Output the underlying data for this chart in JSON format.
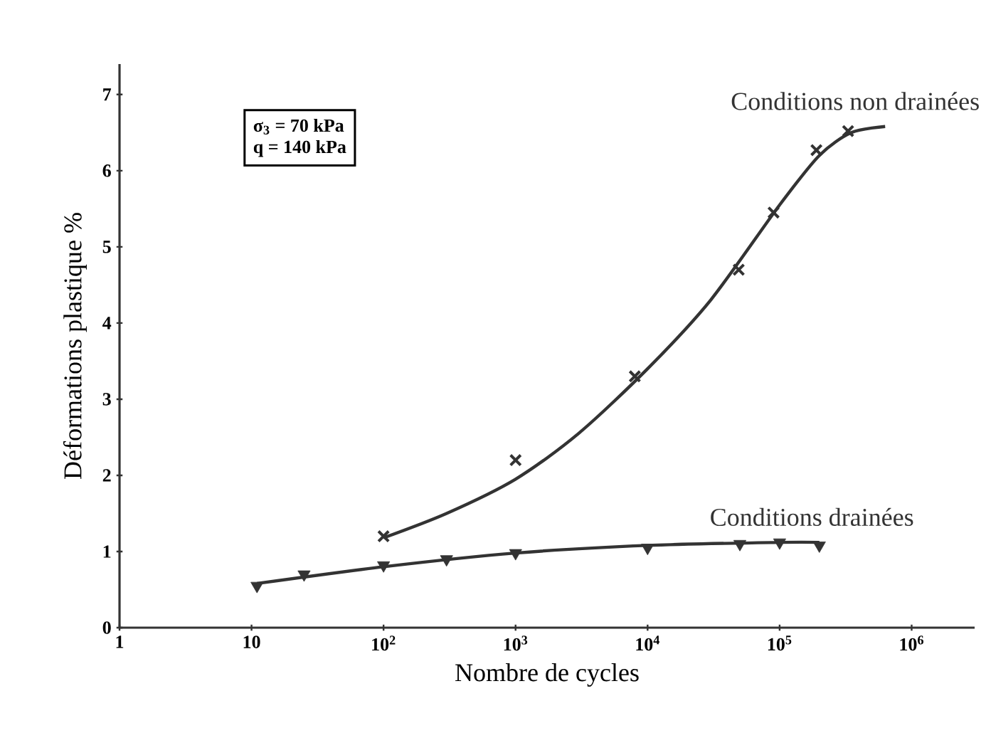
{
  "chart_data": {
    "type": "line",
    "xlabel": "Nombre de cycles",
    "ylabel": "Déformations plastique %",
    "log": "x",
    "xlim": [
      1,
      3000000
    ],
    "ylim": [
      0,
      7.4
    ],
    "xticks": [
      1,
      10,
      {
        "value": 100,
        "label": "10$^{2}$"
      },
      {
        "value": 1000,
        "label": "10$^{3}$"
      },
      {
        "value": 10000,
        "label": "10$^{4}$"
      },
      {
        "value": 100000,
        "label": "10$^{5}$"
      },
      {
        "value": 1000000,
        "label": "10$^{6}$"
      }
    ],
    "yticks": [
      0,
      1,
      2,
      3,
      4,
      5,
      6,
      7
    ],
    "annotations": [
      "σ$_{3}$ =  70 kPa",
      "q  = 140 kPa"
    ],
    "series": [
      {
        "type": "scatter",
        "marker": "cross",
        "color": "#333333",
        "x": [
          100,
          1000,
          8000,
          49000,
          90000,
          190000,
          330000
        ],
        "values": [
          1.2,
          2.2,
          3.3,
          4.7,
          5.45,
          6.27,
          6.52
        ]
      },
      {
        "name": "Conditions non drainées",
        "marker": "none",
        "line_style": "solid",
        "color": "#333333",
        "x": [
          100,
          300,
          1000,
          3000,
          10000,
          30000,
          100000,
          200000,
          350000,
          630000
        ],
        "values": [
          1.18,
          1.5,
          1.95,
          2.55,
          3.4,
          4.3,
          5.55,
          6.2,
          6.5,
          6.58
        ]
      },
      {
        "type": "scatter",
        "marker": "triangle",
        "color": "#333333",
        "x": [
          11,
          25,
          100,
          300,
          1000,
          10000,
          50000,
          100000,
          200000
        ],
        "values": [
          0.55,
          0.7,
          0.82,
          0.9,
          0.98,
          1.05,
          1.1,
          1.12,
          1.08
        ]
      },
      {
        "name": "Conditions drainées",
        "marker": "none",
        "line_style": "solid",
        "color": "#333333",
        "x": [
          11,
          100,
          1000,
          10000,
          100000,
          200000
        ],
        "values": [
          0.58,
          0.8,
          0.98,
          1.08,
          1.12,
          1.12
        ]
      }
    ]
  }
}
